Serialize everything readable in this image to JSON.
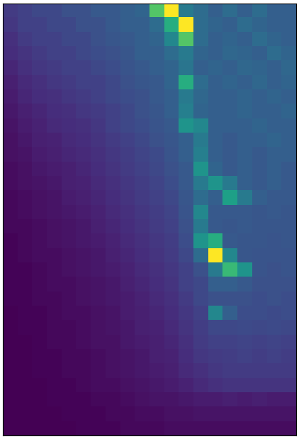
{
  "chart_data": {
    "type": "heatmap",
    "color": "viridis",
    "tick_labels": false,
    "grid": false,
    "cells": [
      [
        0.18,
        0.2,
        0.22,
        0.22,
        0.25,
        0.25,
        0.28,
        0.28,
        0.3,
        0.32,
        0.7,
        0.95,
        0.4,
        0.35,
        0.3,
        0.35,
        0.3,
        0.35,
        0.3,
        0.3
      ],
      [
        0.17,
        0.2,
        0.2,
        0.22,
        0.22,
        0.25,
        0.25,
        0.28,
        0.3,
        0.3,
        0.35,
        0.6,
        0.95,
        0.35,
        0.32,
        0.3,
        0.35,
        0.32,
        0.3,
        0.3
      ],
      [
        0.15,
        0.18,
        0.2,
        0.2,
        0.22,
        0.22,
        0.25,
        0.27,
        0.28,
        0.3,
        0.32,
        0.45,
        0.7,
        0.35,
        0.3,
        0.32,
        0.3,
        0.35,
        0.32,
        0.3
      ],
      [
        0.14,
        0.16,
        0.18,
        0.2,
        0.2,
        0.22,
        0.24,
        0.25,
        0.27,
        0.3,
        0.3,
        0.35,
        0.4,
        0.32,
        0.3,
        0.33,
        0.32,
        0.3,
        0.35,
        0.32
      ],
      [
        0.12,
        0.15,
        0.17,
        0.18,
        0.2,
        0.2,
        0.22,
        0.24,
        0.26,
        0.28,
        0.3,
        0.32,
        0.38,
        0.3,
        0.32,
        0.3,
        0.33,
        0.32,
        0.3,
        0.33
      ],
      [
        0.1,
        0.13,
        0.15,
        0.17,
        0.18,
        0.2,
        0.2,
        0.22,
        0.25,
        0.27,
        0.28,
        0.32,
        0.6,
        0.35,
        0.3,
        0.32,
        0.3,
        0.33,
        0.3,
        0.32
      ],
      [
        0.09,
        0.12,
        0.14,
        0.15,
        0.17,
        0.18,
        0.2,
        0.22,
        0.24,
        0.25,
        0.28,
        0.3,
        0.4,
        0.33,
        0.3,
        0.3,
        0.32,
        0.3,
        0.32,
        0.3
      ],
      [
        0.08,
        0.1,
        0.12,
        0.14,
        0.15,
        0.17,
        0.18,
        0.2,
        0.22,
        0.25,
        0.27,
        0.3,
        0.42,
        0.32,
        0.3,
        0.3,
        0.32,
        0.3,
        0.3,
        0.32
      ],
      [
        0.07,
        0.09,
        0.11,
        0.13,
        0.14,
        0.15,
        0.17,
        0.2,
        0.22,
        0.24,
        0.26,
        0.28,
        0.5,
        0.45,
        0.3,
        0.3,
        0.3,
        0.32,
        0.3,
        0.3
      ],
      [
        0.06,
        0.08,
        0.1,
        0.11,
        0.13,
        0.14,
        0.16,
        0.18,
        0.2,
        0.22,
        0.25,
        0.27,
        0.3,
        0.4,
        0.3,
        0.28,
        0.3,
        0.3,
        0.32,
        0.3
      ],
      [
        0.06,
        0.07,
        0.09,
        0.1,
        0.12,
        0.13,
        0.15,
        0.17,
        0.19,
        0.21,
        0.23,
        0.26,
        0.3,
        0.42,
        0.3,
        0.28,
        0.3,
        0.28,
        0.3,
        0.3
      ],
      [
        0.05,
        0.06,
        0.08,
        0.09,
        0.1,
        0.12,
        0.14,
        0.16,
        0.18,
        0.2,
        0.22,
        0.25,
        0.28,
        0.5,
        0.32,
        0.28,
        0.3,
        0.28,
        0.3,
        0.28
      ],
      [
        0.05,
        0.06,
        0.07,
        0.08,
        0.1,
        0.11,
        0.13,
        0.15,
        0.17,
        0.19,
        0.21,
        0.24,
        0.28,
        0.4,
        0.5,
        0.4,
        0.3,
        0.28,
        0.3,
        0.28
      ],
      [
        0.04,
        0.05,
        0.06,
        0.07,
        0.09,
        0.1,
        0.12,
        0.14,
        0.16,
        0.18,
        0.2,
        0.22,
        0.27,
        0.35,
        0.3,
        0.55,
        0.4,
        0.3,
        0.28,
        0.28
      ],
      [
        0.04,
        0.05,
        0.06,
        0.07,
        0.08,
        0.09,
        0.11,
        0.13,
        0.15,
        0.17,
        0.19,
        0.21,
        0.26,
        0.45,
        0.28,
        0.28,
        0.28,
        0.27,
        0.28,
        0.27
      ],
      [
        0.04,
        0.04,
        0.05,
        0.06,
        0.07,
        0.08,
        0.1,
        0.12,
        0.14,
        0.16,
        0.18,
        0.2,
        0.25,
        0.4,
        0.28,
        0.27,
        0.28,
        0.27,
        0.27,
        0.27
      ],
      [
        0.03,
        0.04,
        0.05,
        0.06,
        0.07,
        0.08,
        0.09,
        0.11,
        0.13,
        0.15,
        0.17,
        0.19,
        0.24,
        0.5,
        0.6,
        0.28,
        0.27,
        0.27,
        0.26,
        0.27
      ],
      [
        0.03,
        0.04,
        0.05,
        0.05,
        0.06,
        0.07,
        0.08,
        0.1,
        0.12,
        0.14,
        0.16,
        0.18,
        0.22,
        0.35,
        0.95,
        0.45,
        0.27,
        0.26,
        0.26,
        0.26
      ],
      [
        0.03,
        0.03,
        0.04,
        0.05,
        0.06,
        0.07,
        0.08,
        0.09,
        0.11,
        0.13,
        0.15,
        0.17,
        0.2,
        0.25,
        0.4,
        0.65,
        0.5,
        0.26,
        0.25,
        0.26
      ],
      [
        0.03,
        0.03,
        0.04,
        0.05,
        0.05,
        0.06,
        0.07,
        0.08,
        0.1,
        0.12,
        0.14,
        0.16,
        0.2,
        0.22,
        0.3,
        0.3,
        0.28,
        0.25,
        0.25,
        0.25
      ],
      [
        0.03,
        0.03,
        0.04,
        0.04,
        0.05,
        0.06,
        0.07,
        0.08,
        0.09,
        0.11,
        0.13,
        0.15,
        0.18,
        0.22,
        0.25,
        0.25,
        0.25,
        0.24,
        0.25,
        0.24
      ],
      [
        0.02,
        0.03,
        0.03,
        0.04,
        0.05,
        0.05,
        0.06,
        0.07,
        0.09,
        0.1,
        0.12,
        0.14,
        0.17,
        0.2,
        0.45,
        0.3,
        0.24,
        0.24,
        0.23,
        0.24
      ],
      [
        0.02,
        0.03,
        0.03,
        0.04,
        0.04,
        0.05,
        0.06,
        0.07,
        0.08,
        0.1,
        0.11,
        0.13,
        0.16,
        0.19,
        0.22,
        0.22,
        0.23,
        0.22,
        0.23,
        0.22
      ],
      [
        0.02,
        0.02,
        0.03,
        0.04,
        0.04,
        0.05,
        0.06,
        0.06,
        0.08,
        0.09,
        0.1,
        0.12,
        0.15,
        0.18,
        0.2,
        0.2,
        0.21,
        0.2,
        0.21,
        0.2
      ],
      [
        0.02,
        0.02,
        0.03,
        0.03,
        0.04,
        0.04,
        0.05,
        0.06,
        0.07,
        0.08,
        0.1,
        0.11,
        0.14,
        0.17,
        0.18,
        0.19,
        0.2,
        0.19,
        0.2,
        0.19
      ],
      [
        0.02,
        0.02,
        0.03,
        0.03,
        0.04,
        0.04,
        0.05,
        0.06,
        0.07,
        0.08,
        0.09,
        0.1,
        0.13,
        0.15,
        0.17,
        0.18,
        0.18,
        0.18,
        0.18,
        0.18
      ],
      [
        0.02,
        0.02,
        0.02,
        0.03,
        0.03,
        0.04,
        0.05,
        0.05,
        0.06,
        0.07,
        0.08,
        0.09,
        0.11,
        0.13,
        0.15,
        0.16,
        0.16,
        0.16,
        0.16,
        0.16
      ],
      [
        0.02,
        0.02,
        0.02,
        0.03,
        0.03,
        0.03,
        0.04,
        0.04,
        0.05,
        0.06,
        0.07,
        0.07,
        0.08,
        0.09,
        0.09,
        0.1,
        0.09,
        0.1,
        0.09,
        0.09
      ],
      [
        0.02,
        0.02,
        0.02,
        0.02,
        0.03,
        0.03,
        0.03,
        0.04,
        0.04,
        0.05,
        0.05,
        0.06,
        0.06,
        0.07,
        0.07,
        0.07,
        0.07,
        0.07,
        0.07,
        0.07
      ],
      [
        0.02,
        0.02,
        0.02,
        0.02,
        0.02,
        0.03,
        0.03,
        0.03,
        0.04,
        0.04,
        0.04,
        0.05,
        0.05,
        0.05,
        0.05,
        0.05,
        0.05,
        0.05,
        0.05,
        0.05
      ]
    ]
  }
}
